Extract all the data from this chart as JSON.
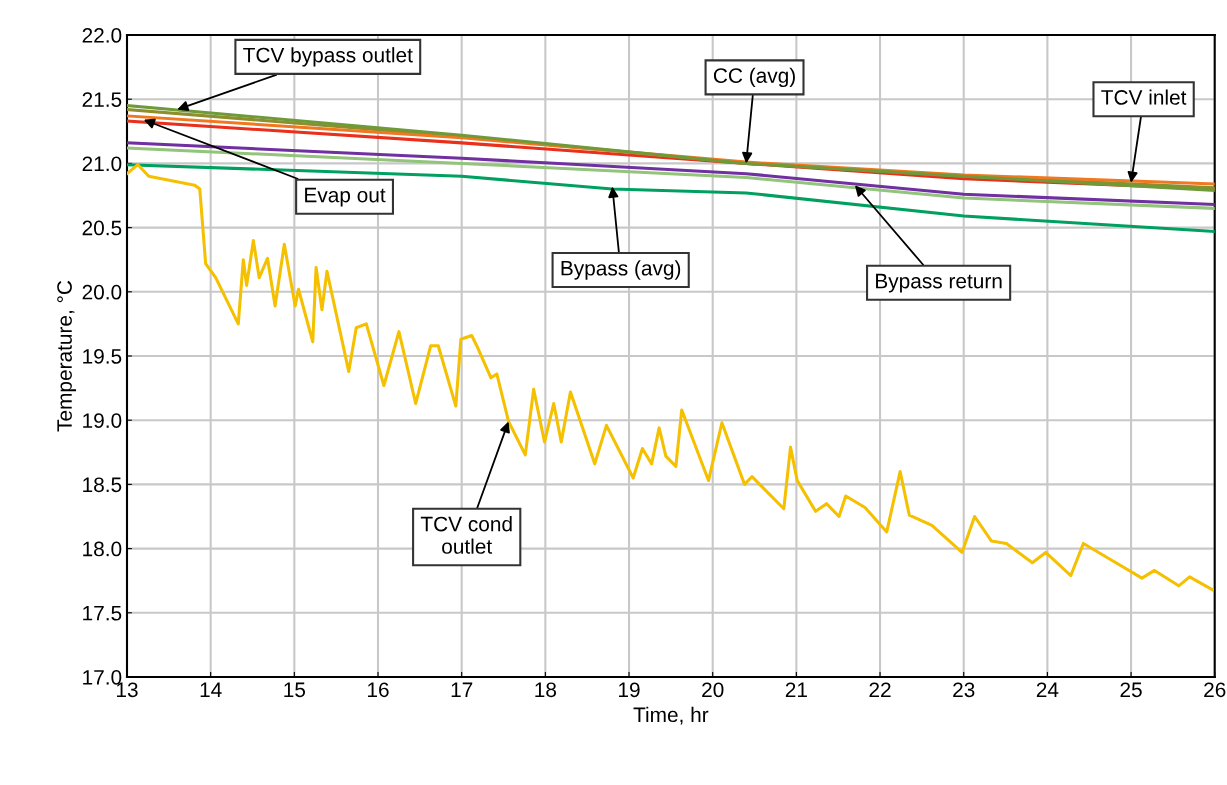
{
  "chart_data": {
    "type": "line",
    "xlabel": "Time, hr",
    "ylabel": "Temperature, °C",
    "xlim": [
      13,
      26
    ],
    "xticks": [
      13,
      14,
      15,
      16,
      17,
      18,
      19,
      20,
      21,
      22,
      23,
      24,
      25,
      26
    ],
    "ylim": [
      17,
      22
    ],
    "yticks": [
      {
        "value": 17,
        "label": "17.0"
      },
      {
        "value": 17.5,
        "label": "17.5"
      },
      {
        "value": 18,
        "label": "18.0"
      },
      {
        "value": 18.5,
        "label": "18.5"
      },
      {
        "value": 19,
        "label": "19.0"
      },
      {
        "value": 19.5,
        "label": "19.5"
      },
      {
        "value": 20,
        "label": "20.0"
      },
      {
        "value": 20.5,
        "label": "20.5"
      },
      {
        "value": 21,
        "label": "21.0"
      },
      {
        "value": 21.5,
        "label": "21.5"
      },
      {
        "value": 22,
        "label": "22.0"
      }
    ],
    "grid": true,
    "marker": "none",
    "line_style": "solid",
    "series": [
      {
        "color": "#00a060",
        "x": [
          13,
          17,
          18.8,
          20.4,
          23,
          26
        ],
        "values": [
          20.99,
          20.9,
          20.8,
          20.77,
          20.59,
          20.47
        ]
      },
      {
        "color": "#92c47c",
        "x": [
          13,
          17,
          20.4,
          23,
          26
        ],
        "values": [
          21.12,
          21.0,
          20.89,
          20.73,
          20.65
        ]
      },
      {
        "color": "#7030a0",
        "x": [
          13,
          17,
          20.4,
          23,
          26
        ],
        "values": [
          21.16,
          21.04,
          20.92,
          20.76,
          20.68
        ]
      },
      {
        "color": "#e8301c",
        "x": [
          13,
          17,
          20.4,
          23,
          26
        ],
        "values": [
          21.33,
          21.16,
          21.0,
          20.88,
          20.8
        ]
      },
      {
        "color": "#8d8f2c",
        "x": [
          13,
          17,
          20.4,
          23,
          26
        ],
        "values": [
          21.42,
          21.21,
          21.0,
          20.9,
          20.81
        ]
      },
      {
        "color": "#f07820",
        "x": [
          13,
          17,
          20.4,
          23,
          26
        ],
        "values": [
          21.37,
          21.2,
          21.01,
          20.91,
          20.84
        ]
      },
      {
        "color": "#6f9a3a",
        "x": [
          13,
          17,
          20.4,
          23,
          26
        ],
        "values": [
          21.45,
          21.22,
          21.0,
          20.9,
          20.79
        ]
      },
      {
        "color": "#f5c000",
        "x": [
          13,
          13.13,
          13.26,
          13.81,
          13.87,
          13.94,
          14.06,
          14.33,
          14.39,
          14.43,
          14.51,
          14.58,
          14.68,
          14.77,
          14.88,
          15.01,
          15.05,
          15.22,
          15.26,
          15.33,
          15.39,
          15.65,
          15.74,
          15.86,
          16.07,
          16.25,
          16.45,
          16.63,
          16.72,
          16.93,
          16.99,
          17.12,
          17.18,
          17.35,
          17.42,
          17.56,
          17.76,
          17.86,
          17.99,
          18.1,
          18.19,
          18.3,
          18.59,
          18.73,
          19.05,
          19.16,
          19.27,
          19.36,
          19.44,
          19.56,
          19.63,
          19.95,
          20.11,
          20.38,
          20.47,
          20.85,
          20.93,
          21.01,
          21.23,
          21.36,
          21.51,
          21.59,
          21.82,
          22.08,
          22.24,
          22.35,
          22.62,
          22.98,
          23.13,
          23.33,
          23.51,
          23.82,
          23.98,
          24.28,
          24.43,
          24.82,
          25.13,
          25.28,
          25.57,
          25.7,
          25.97
        ],
        "values": [
          20.92,
          20.99,
          20.9,
          20.83,
          20.8,
          20.22,
          20.11,
          19.75,
          20.25,
          20.05,
          20.4,
          20.11,
          20.26,
          19.89,
          20.37,
          19.89,
          20.02,
          19.61,
          20.19,
          19.86,
          20.16,
          19.38,
          19.72,
          19.75,
          19.27,
          19.69,
          19.13,
          19.58,
          19.58,
          19.11,
          19.63,
          19.66,
          19.58,
          19.33,
          19.36,
          18.99,
          18.73,
          19.24,
          18.83,
          19.13,
          18.83,
          19.22,
          18.66,
          18.96,
          18.55,
          18.78,
          18.66,
          18.94,
          18.72,
          18.64,
          19.08,
          18.53,
          18.98,
          18.5,
          18.56,
          18.31,
          18.79,
          18.53,
          18.29,
          18.35,
          18.25,
          18.41,
          18.32,
          18.13,
          18.6,
          18.26,
          18.18,
          17.97,
          18.25,
          18.06,
          18.04,
          17.89,
          17.97,
          17.79,
          18.04,
          17.89,
          17.77,
          17.83,
          17.71,
          17.78,
          17.68
        ]
      }
    ],
    "annotations": [
      {
        "text": "TCV bypass outlet",
        "x": 13.6,
        "y": 21.42
      },
      {
        "text": "Evap out",
        "x": 13.2,
        "y": 21.34
      },
      {
        "text": "CC (avg)",
        "x": 20.4,
        "y": 21.0
      },
      {
        "text": "TCV inlet",
        "x": 25.0,
        "y": 20.85
      },
      {
        "text": "Bypass (avg)",
        "x": 18.8,
        "y": 20.82
      },
      {
        "text": "Bypass return",
        "x": 21.7,
        "y": 20.83
      },
      {
        "text": "TCV cond\noutlet",
        "x": 17.56,
        "y": 18.99
      }
    ]
  }
}
